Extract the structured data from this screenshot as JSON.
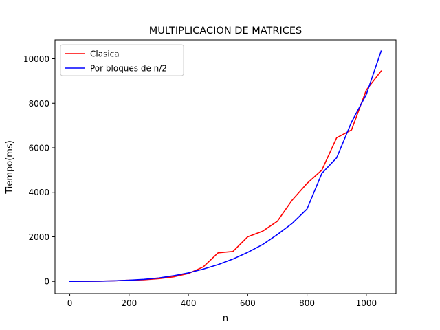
{
  "chart_data": {
    "type": "line",
    "title": "MULTIPLICACION DE MATRICES",
    "xlabel": "n",
    "ylabel": "Tiempo(ms)",
    "xlim": [
      -50,
      1100
    ],
    "ylim": [
      -550,
      10850
    ],
    "xticks": [
      0,
      200,
      400,
      600,
      800,
      1000
    ],
    "yticks": [
      0,
      2000,
      4000,
      6000,
      8000,
      10000
    ],
    "grid": false,
    "legend_position": "top-left",
    "series": [
      {
        "name": "Clasica",
        "color": "#ff0000",
        "x": [
          0,
          50,
          100,
          150,
          200,
          250,
          300,
          350,
          400,
          450,
          500,
          550,
          600,
          650,
          700,
          750,
          800,
          850,
          900,
          950,
          1000,
          1050
        ],
        "y": [
          0,
          2,
          8,
          25,
          50,
          70,
          120,
          200,
          350,
          650,
          1280,
          1340,
          2000,
          2250,
          2700,
          3650,
          4400,
          5000,
          6450,
          6800,
          8600,
          9450
        ]
      },
      {
        "name": "Por bloques de n/2",
        "color": "#0000ff",
        "x": [
          0,
          50,
          100,
          150,
          200,
          250,
          300,
          350,
          400,
          450,
          500,
          550,
          600,
          650,
          700,
          750,
          800,
          850,
          900,
          950,
          1000,
          1050
        ],
        "y": [
          0,
          2,
          10,
          25,
          50,
          90,
          150,
          250,
          380,
          550,
          750,
          1000,
          1300,
          1650,
          2100,
          2600,
          3250,
          4850,
          5550,
          7150,
          8400,
          10350
        ]
      }
    ]
  }
}
